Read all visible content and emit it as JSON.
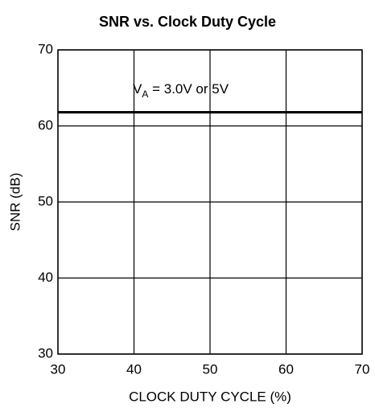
{
  "chart_data": {
    "type": "line",
    "title": "SNR vs. Clock Duty Cycle",
    "x_label": "CLOCK DUTY CYCLE (%)",
    "y_label": "SNR (dB)",
    "annotation": [
      "V",
      "A",
      " = 3.0V or 5V"
    ],
    "x": [
      30,
      40,
      50,
      60,
      70
    ],
    "series": [
      {
        "color": "#000000",
        "values": [
          61.8,
          61.8,
          61.8,
          61.8,
          61.8
        ]
      }
    ],
    "xlim": [
      30,
      70
    ],
    "xticks": [
      30,
      40,
      50,
      60,
      70
    ],
    "ylim": [
      30,
      70
    ],
    "yticks": [
      30,
      40,
      50,
      60,
      70
    ],
    "grid": true
  }
}
